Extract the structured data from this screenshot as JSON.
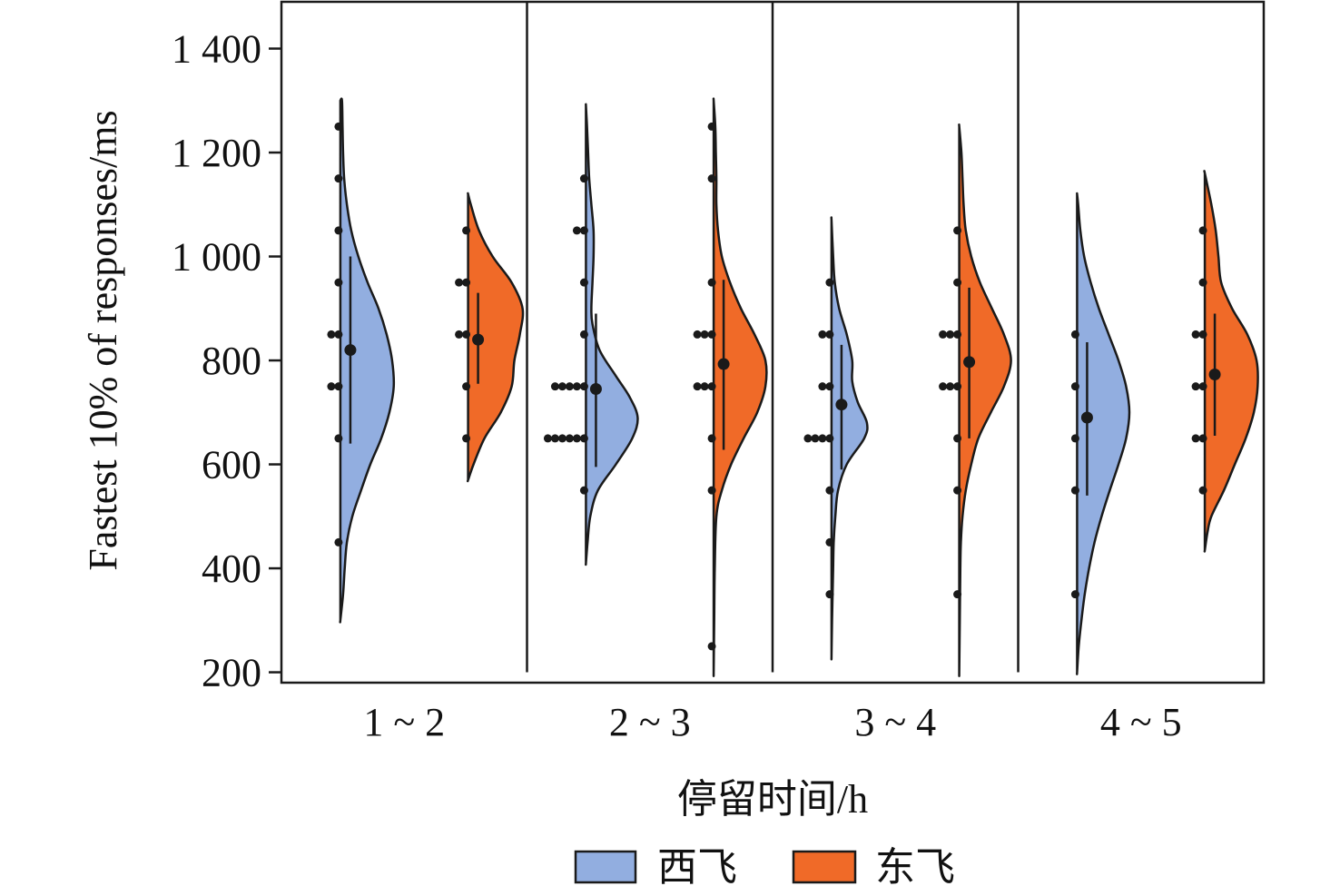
{
  "chart_data": {
    "type": "violin",
    "ylabel": "Fastest 10% of responses/ms",
    "xlabel": "停留时间/h",
    "y_ticks": [
      "200",
      "400",
      "600",
      "800",
      "1 000",
      "1 200",
      "1 400"
    ],
    "ylim": [
      180,
      1490
    ],
    "categories": [
      "1 ~ 2",
      "2 ~ 3",
      "3 ~ 4",
      "4 ~ 5"
    ],
    "grid": false,
    "legend_position": "bottom",
    "colors": {
      "西飞": "#92aee0",
      "东飞": "#f06a28",
      "outline": "#1a1a1a"
    },
    "series": [
      {
        "name": "西飞",
        "groups": [
          {
            "category": "1 ~ 2",
            "min": 300,
            "max": 1300,
            "mean": 820,
            "ci": [
              640,
              1000
            ],
            "density": [
              [
                300,
                0.0
              ],
              [
                350,
                0.05
              ],
              [
                400,
                0.08
              ],
              [
                450,
                0.12
              ],
              [
                500,
                0.22
              ],
              [
                550,
                0.38
              ],
              [
                600,
                0.55
              ],
              [
                650,
                0.75
              ],
              [
                700,
                0.9
              ],
              [
                750,
                0.98
              ],
              [
                800,
                0.95
              ],
              [
                850,
                0.85
              ],
              [
                900,
                0.7
              ],
              [
                950,
                0.5
              ],
              [
                1000,
                0.33
              ],
              [
                1050,
                0.2
              ],
              [
                1100,
                0.12
              ],
              [
                1150,
                0.07
              ],
              [
                1200,
                0.05
              ],
              [
                1250,
                0.04
              ],
              [
                1300,
                0.03
              ]
            ],
            "dots": [
              {
                "y": 450,
                "n": 1
              },
              {
                "y": 650,
                "n": 1
              },
              {
                "y": 750,
                "n": 2
              },
              {
                "y": 850,
                "n": 2
              },
              {
                "y": 950,
                "n": 1
              },
              {
                "y": 1050,
                "n": 1
              },
              {
                "y": 1150,
                "n": 1
              },
              {
                "y": 1250,
                "n": 1
              }
            ]
          },
          {
            "category": "2 ~ 3",
            "min": 410,
            "max": 1290,
            "mean": 745,
            "ci": [
              595,
              890
            ],
            "density": [
              [
                410,
                0.0
              ],
              [
                450,
                0.03
              ],
              [
                500,
                0.08
              ],
              [
                550,
                0.22
              ],
              [
                600,
                0.55
              ],
              [
                650,
                0.85
              ],
              [
                690,
                0.95
              ],
              [
                730,
                0.8
              ],
              [
                770,
                0.55
              ],
              [
                820,
                0.25
              ],
              [
                870,
                0.12
              ],
              [
                900,
                0.1
              ],
              [
                950,
                0.12
              ],
              [
                1000,
                0.14
              ],
              [
                1050,
                0.14
              ],
              [
                1100,
                0.1
              ],
              [
                1150,
                0.06
              ],
              [
                1200,
                0.04
              ],
              [
                1250,
                0.02
              ],
              [
                1290,
                0.0
              ]
            ],
            "dots": [
              {
                "y": 550,
                "n": 1
              },
              {
                "y": 650,
                "n": 6
              },
              {
                "y": 750,
                "n": 5
              },
              {
                "y": 850,
                "n": 1
              },
              {
                "y": 950,
                "n": 1
              },
              {
                "y": 1050,
                "n": 2
              },
              {
                "y": 1150,
                "n": 1
              }
            ]
          },
          {
            "category": "3 ~ 4",
            "min": 230,
            "max": 1070,
            "mean": 715,
            "ci": [
              590,
              830
            ],
            "density": [
              [
                230,
                0.0
              ],
              [
                300,
                0.01
              ],
              [
                350,
                0.02
              ],
              [
                400,
                0.03
              ],
              [
                450,
                0.04
              ],
              [
                500,
                0.07
              ],
              [
                550,
                0.12
              ],
              [
                600,
                0.28
              ],
              [
                650,
                0.6
              ],
              [
                680,
                0.65
              ],
              [
                720,
                0.48
              ],
              [
                760,
                0.38
              ],
              [
                800,
                0.38
              ],
              [
                850,
                0.28
              ],
              [
                900,
                0.14
              ],
              [
                950,
                0.06
              ],
              [
                1000,
                0.03
              ],
              [
                1070,
                0.0
              ]
            ],
            "dots": [
              {
                "y": 350,
                "n": 1
              },
              {
                "y": 450,
                "n": 1
              },
              {
                "y": 550,
                "n": 1
              },
              {
                "y": 650,
                "n": 4
              },
              {
                "y": 750,
                "n": 2
              },
              {
                "y": 850,
                "n": 2
              },
              {
                "y": 950,
                "n": 1
              }
            ]
          },
          {
            "category": "4 ~ 5",
            "min": 200,
            "max": 1120,
            "mean": 690,
            "ci": [
              540,
              835
            ],
            "density": [
              [
                200,
                0.0
              ],
              [
                250,
                0.03
              ],
              [
                300,
                0.08
              ],
              [
                350,
                0.14
              ],
              [
                400,
                0.22
              ],
              [
                450,
                0.32
              ],
              [
                500,
                0.45
              ],
              [
                550,
                0.6
              ],
              [
                600,
                0.76
              ],
              [
                650,
                0.9
              ],
              [
                700,
                0.96
              ],
              [
                750,
                0.9
              ],
              [
                800,
                0.76
              ],
              [
                850,
                0.58
              ],
              [
                900,
                0.4
              ],
              [
                950,
                0.25
              ],
              [
                1000,
                0.13
              ],
              [
                1050,
                0.06
              ],
              [
                1100,
                0.02
              ],
              [
                1120,
                0.0
              ]
            ],
            "dots": [
              {
                "y": 350,
                "n": 1
              },
              {
                "y": 550,
                "n": 1
              },
              {
                "y": 650,
                "n": 1
              },
              {
                "y": 750,
                "n": 1
              },
              {
                "y": 850,
                "n": 1
              }
            ]
          }
        ]
      },
      {
        "name": "东飞",
        "groups": [
          {
            "category": "1 ~ 2",
            "min": 570,
            "max": 1120,
            "mean": 840,
            "ci": [
              755,
              930
            ],
            "density": [
              [
                570,
                0.0
              ],
              [
                600,
                0.1
              ],
              [
                650,
                0.3
              ],
              [
                700,
                0.6
              ],
              [
                750,
                0.8
              ],
              [
                800,
                0.85
              ],
              [
                850,
                0.95
              ],
              [
                900,
                1.0
              ],
              [
                950,
                0.8
              ],
              [
                1000,
                0.45
              ],
              [
                1050,
                0.2
              ],
              [
                1100,
                0.05
              ],
              [
                1120,
                0.0
              ]
            ],
            "dots": [
              {
                "y": 650,
                "n": 1
              },
              {
                "y": 750,
                "n": 1
              },
              {
                "y": 850,
                "n": 2
              },
              {
                "y": 950,
                "n": 2
              },
              {
                "y": 1050,
                "n": 1
              }
            ]
          },
          {
            "category": "2 ~ 3",
            "min": 200,
            "max": 1300,
            "mean": 793,
            "ci": [
              628,
              955
            ],
            "density": [
              [
                200,
                0.0
              ],
              [
                300,
                0.01
              ],
              [
                400,
                0.02
              ],
              [
                500,
                0.05
              ],
              [
                550,
                0.15
              ],
              [
                600,
                0.32
              ],
              [
                650,
                0.55
              ],
              [
                700,
                0.8
              ],
              [
                750,
                0.95
              ],
              [
                800,
                0.95
              ],
              [
                850,
                0.75
              ],
              [
                900,
                0.5
              ],
              [
                950,
                0.3
              ],
              [
                1000,
                0.15
              ],
              [
                1050,
                0.08
              ],
              [
                1100,
                0.05
              ],
              [
                1150,
                0.05
              ],
              [
                1200,
                0.04
              ],
              [
                1250,
                0.03
              ],
              [
                1300,
                0.0
              ]
            ],
            "dots": [
              {
                "y": 250,
                "n": 1
              },
              {
                "y": 550,
                "n": 1
              },
              {
                "y": 650,
                "n": 1
              },
              {
                "y": 750,
                "n": 3
              },
              {
                "y": 850,
                "n": 3
              },
              {
                "y": 950,
                "n": 1
              },
              {
                "y": 1150,
                "n": 1
              },
              {
                "y": 1250,
                "n": 1
              }
            ]
          },
          {
            "category": "3 ~ 4",
            "min": 200,
            "max": 1250,
            "mean": 797,
            "ci": [
              650,
              940
            ],
            "density": [
              [
                200,
                0.0
              ],
              [
                300,
                0.01
              ],
              [
                400,
                0.02
              ],
              [
                450,
                0.03
              ],
              [
                500,
                0.06
              ],
              [
                550,
                0.12
              ],
              [
                600,
                0.22
              ],
              [
                650,
                0.35
              ],
              [
                700,
                0.58
              ],
              [
                750,
                0.82
              ],
              [
                800,
                0.95
              ],
              [
                850,
                0.82
              ],
              [
                900,
                0.6
              ],
              [
                950,
                0.38
              ],
              [
                1000,
                0.22
              ],
              [
                1050,
                0.12
              ],
              [
                1100,
                0.08
              ],
              [
                1150,
                0.06
              ],
              [
                1200,
                0.04
              ],
              [
                1250,
                0.0
              ]
            ],
            "dots": [
              {
                "y": 350,
                "n": 1
              },
              {
                "y": 550,
                "n": 1
              },
              {
                "y": 650,
                "n": 1
              },
              {
                "y": 750,
                "n": 3
              },
              {
                "y": 850,
                "n": 3
              },
              {
                "y": 950,
                "n": 1
              },
              {
                "y": 1050,
                "n": 1
              }
            ]
          },
          {
            "category": "4 ~ 5",
            "min": 435,
            "max": 1160,
            "mean": 773,
            "ci": [
              655,
              890
            ],
            "density": [
              [
                435,
                0.0
              ],
              [
                470,
                0.05
              ],
              [
                500,
                0.12
              ],
              [
                550,
                0.35
              ],
              [
                600,
                0.55
              ],
              [
                650,
                0.75
              ],
              [
                700,
                0.9
              ],
              [
                750,
                0.97
              ],
              [
                800,
                0.95
              ],
              [
                850,
                0.78
              ],
              [
                900,
                0.5
              ],
              [
                950,
                0.3
              ],
              [
                1000,
                0.25
              ],
              [
                1050,
                0.2
              ],
              [
                1100,
                0.12
              ],
              [
                1160,
                0.0
              ]
            ],
            "dots": [
              {
                "y": 550,
                "n": 1
              },
              {
                "y": 650,
                "n": 2
              },
              {
                "y": 750,
                "n": 2
              },
              {
                "y": 850,
                "n": 2
              },
              {
                "y": 950,
                "n": 1
              },
              {
                "y": 1050,
                "n": 1
              }
            ]
          }
        ]
      }
    ]
  }
}
